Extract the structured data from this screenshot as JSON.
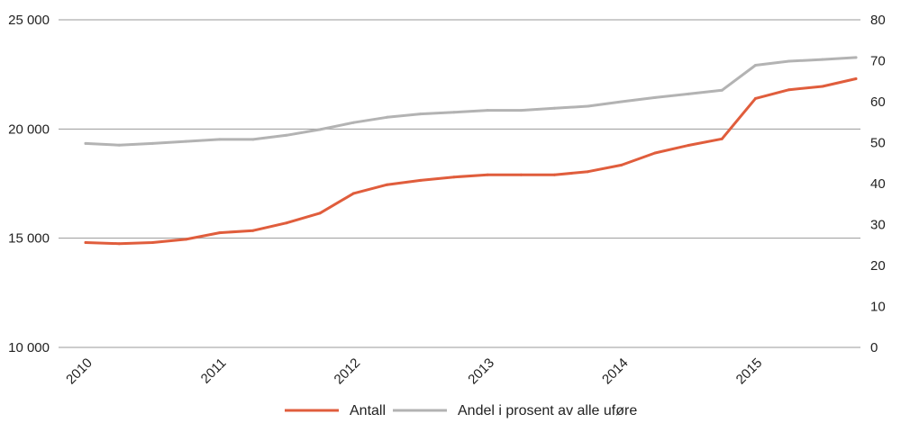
{
  "chart_data": {
    "type": "line",
    "title": "",
    "x": [
      2010.0,
      2010.25,
      2010.5,
      2010.75,
      2011.0,
      2011.25,
      2011.5,
      2011.75,
      2012.0,
      2012.25,
      2012.5,
      2012.75,
      2013.0,
      2013.25,
      2013.5,
      2013.75,
      2014.0,
      2014.25,
      2014.5,
      2014.75,
      2015.0,
      2015.25,
      2015.5,
      2015.75
    ],
    "x_ticks": [
      "2010",
      "2011",
      "2012",
      "2013",
      "2014",
      "2015"
    ],
    "x_tick_values": [
      2010,
      2011,
      2012,
      2013,
      2014,
      2015
    ],
    "y_left": {
      "ylim": [
        10000,
        25000
      ],
      "ticks": [
        10000,
        15000,
        20000,
        25000
      ],
      "tick_labels": [
        "10 000",
        "15 000",
        "20 000",
        "25 000"
      ]
    },
    "y_right": {
      "ylim": [
        0,
        80
      ],
      "ticks": [
        0,
        10,
        20,
        30,
        40,
        50,
        60,
        70,
        80
      ],
      "tick_labels": [
        "0",
        "10",
        "20",
        "30",
        "40",
        "50",
        "60",
        "70",
        "80"
      ]
    },
    "grid": true,
    "legend_position": "bottom",
    "series": [
      {
        "name": "Antall",
        "axis": "left",
        "color": "#e05d3c",
        "values": [
          14800,
          14750,
          14800,
          14950,
          15250,
          15350,
          15700,
          16150,
          17050,
          17450,
          17650,
          17800,
          17900,
          17900,
          17900,
          18050,
          18350,
          18900,
          19250,
          19550,
          21400,
          21800,
          21950,
          22300
        ]
      },
      {
        "name": "Andel i prosent av alle uføre",
        "axis": "right",
        "color": "#b3b3b3",
        "values": [
          49.8,
          49.4,
          49.8,
          50.3,
          50.8,
          50.8,
          51.8,
          53.2,
          54.9,
          56.2,
          57.0,
          57.4,
          57.9,
          57.9,
          58.4,
          58.9,
          60.0,
          61.0,
          61.9,
          62.8,
          68.9,
          69.9,
          70.3,
          70.8
        ]
      }
    ]
  }
}
